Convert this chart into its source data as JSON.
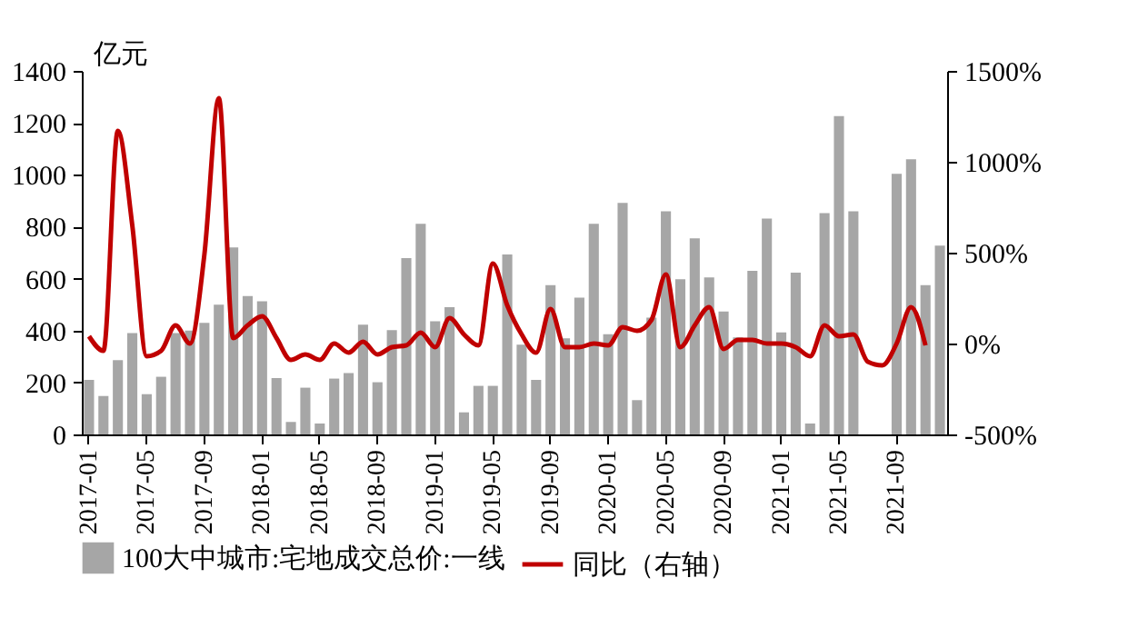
{
  "chart_data": {
    "type": "bar",
    "ylabel": "亿元",
    "categories": [
      "2017-01",
      null,
      null,
      null,
      "2017-05",
      null,
      null,
      null,
      "2017-09",
      null,
      null,
      null,
      "2018-01",
      null,
      null,
      null,
      "2018-05",
      null,
      null,
      null,
      "2018-09",
      null,
      null,
      null,
      "2019-01",
      null,
      null,
      null,
      "2019-05",
      null,
      null,
      null,
      "2019-09",
      null,
      null,
      null,
      "2020-01",
      null,
      null,
      null,
      "2020-05",
      null,
      null,
      null,
      "2020-09",
      null,
      null,
      null,
      "2021-01",
      null,
      null,
      null,
      "2021-05",
      null,
      null,
      null,
      "2021-09",
      null,
      null,
      null
    ],
    "series": [
      {
        "name": "100大中城市:宅地成交总价:一线",
        "color": "#a6a6a6",
        "values": [
          210,
          148,
          286,
          390,
          155,
          222,
          390,
          400,
          430,
          500,
          720,
          533,
          513,
          217,
          48,
          180,
          42,
          215,
          236,
          423,
          201,
          402,
          679,
          811,
          436,
          490,
          85,
          187,
          187,
          693,
          346,
          210,
          575,
          370,
          527,
          811,
          386,
          892,
          132,
          450,
          859,
          598,
          755,
          605,
          473,
          374,
          630,
          831,
          393,
          623,
          42,
          852,
          1226,
          859,
          null,
          null,
          1004,
          1060,
          575,
          727
        ]
      },
      {
        "name": "同比（右轴）",
        "type": "line",
        "axis": "y2",
        "color": "#c00000",
        "values": [
          40,
          -40,
          1170,
          650,
          -70,
          -40,
          100,
          0,
          490,
          1350,
          30,
          100,
          150,
          30,
          -90,
          -60,
          -90,
          0,
          -50,
          10,
          -60,
          -20,
          -10,
          60,
          -20,
          140,
          50,
          -10,
          440,
          210,
          50,
          -50,
          190,
          -20,
          -20,
          0,
          -10,
          90,
          70,
          130,
          380,
          -20,
          100,
          200,
          -30,
          20,
          20,
          0,
          0,
          -20,
          -70,
          100,
          40,
          50,
          -100,
          -120,
          0,
          200,
          -10,
          null
        ]
      }
    ],
    "ylim": [
      0,
      1400
    ],
    "yticks": [
      0,
      200,
      400,
      600,
      800,
      1000,
      1200,
      1400
    ],
    "y2lim": [
      -500,
      1500
    ],
    "y2ticks": [
      {
        "value": -500,
        "label": "-500%"
      },
      {
        "value": 0,
        "label": "0%"
      },
      {
        "value": 500,
        "label": "500%"
      },
      {
        "value": 1000,
        "label": "1000%"
      },
      {
        "value": 1500,
        "label": "1500%"
      }
    ],
    "grid": false,
    "legend": "bottom"
  }
}
